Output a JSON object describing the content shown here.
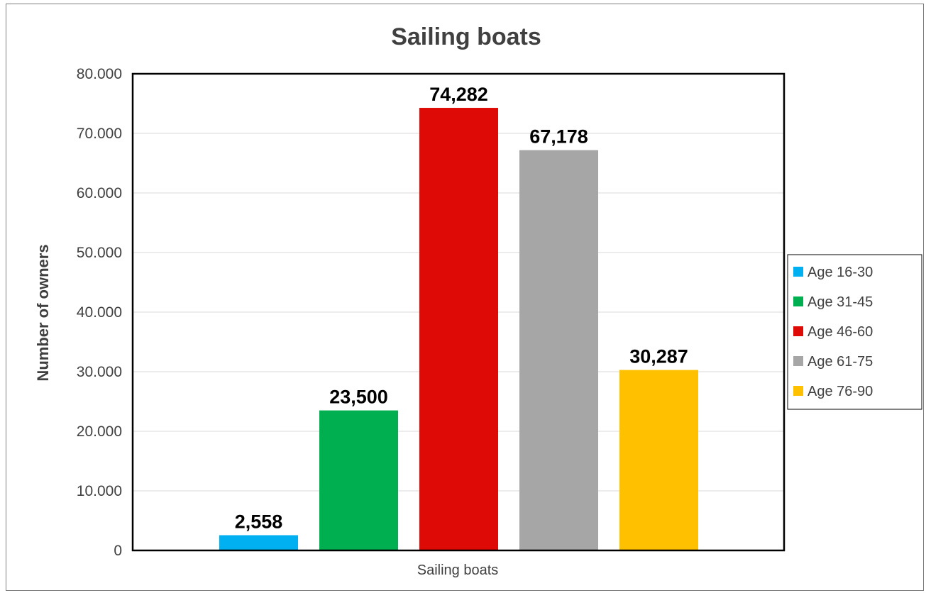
{
  "chart_data": {
    "type": "bar",
    "title": "Sailing boats",
    "xlabel": "",
    "ylabel": "Number of owners",
    "categories": [
      "Sailing boats"
    ],
    "series": [
      {
        "name": "Age 16-30",
        "values": [
          2558
        ],
        "label": "2,558",
        "color": "#00b0f0"
      },
      {
        "name": "Age 31-45",
        "values": [
          23500
        ],
        "label": "23,500",
        "color": "#00b050"
      },
      {
        "name": "Age 46-60",
        "values": [
          74282
        ],
        "label": "74,282",
        "color": "#de0a05"
      },
      {
        "name": "Age 61-75",
        "values": [
          67178
        ],
        "label": "67,178",
        "color": "#a6a6a6"
      },
      {
        "name": "Age 76-90",
        "values": [
          30287
        ],
        "label": "30,287",
        "color": "#ffc000"
      }
    ],
    "ylim": [
      0,
      80000
    ],
    "yticks": [
      0,
      10000,
      20000,
      30000,
      40000,
      50000,
      60000,
      70000,
      80000
    ],
    "ytick_labels": [
      "0",
      "10.000",
      "20.000",
      "30.000",
      "40.000",
      "50.000",
      "60.000",
      "70.000",
      "80.000"
    ],
    "grid": true,
    "legend_position": "right"
  }
}
